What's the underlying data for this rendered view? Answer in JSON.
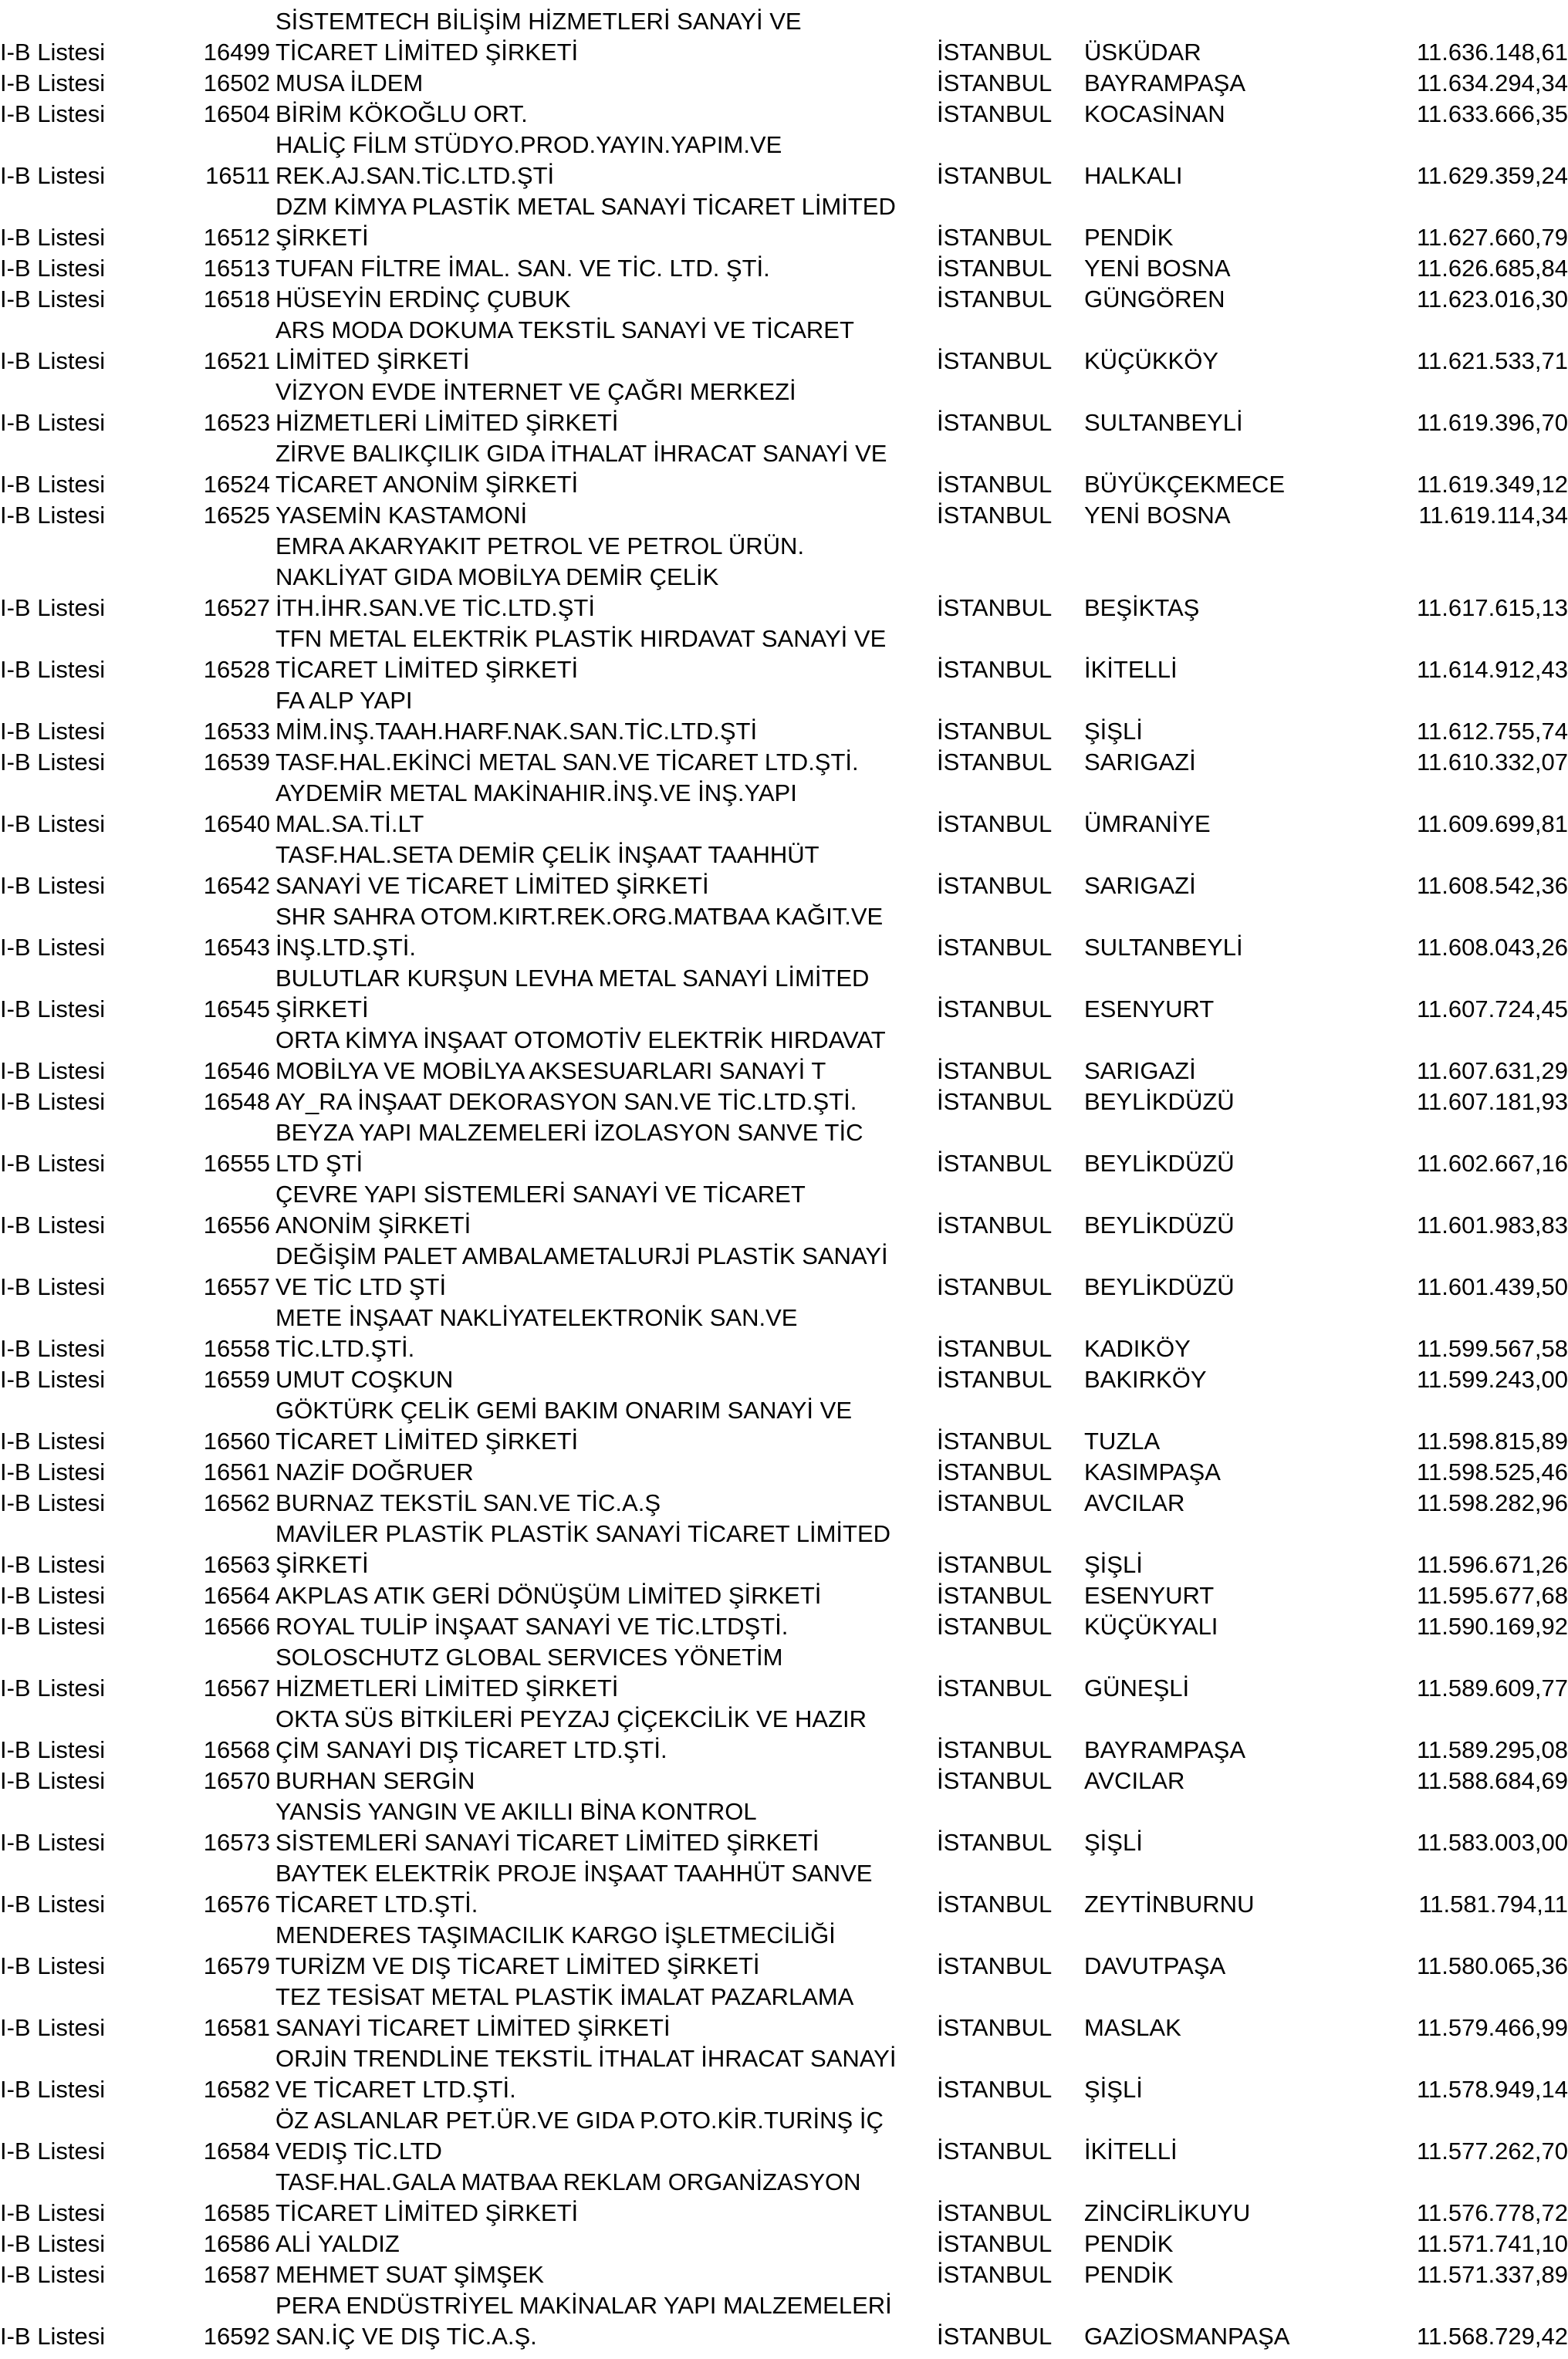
{
  "rows": [
    {
      "list": "I-B Listesi",
      "id": "16499",
      "name": [
        "SİSTEMTECH BİLİŞİM HİZMETLERİ SANAYİ VE",
        "TİCARET LİMİTED ŞİRKETİ"
      ],
      "city": "İSTANBUL",
      "district": "ÜSKÜDAR",
      "amount": "11.636.148,61"
    },
    {
      "list": "I-B Listesi",
      "id": "16502",
      "name": [
        "MUSA İLDEM"
      ],
      "city": "İSTANBUL",
      "district": "BAYRAMPAŞA",
      "amount": "11.634.294,34"
    },
    {
      "list": "I-B Listesi",
      "id": "16504",
      "name": [
        "BİRİM KÖKOĞLU ORT."
      ],
      "city": "İSTANBUL",
      "district": "KOCASİNAN",
      "amount": "11.633.666,35"
    },
    {
      "list": "I-B Listesi",
      "id": "16511",
      "name": [
        "HALİÇ FİLM STÜDYO.PROD.YAYIN.YAPIM.VE",
        "REK.AJ.SAN.TİC.LTD.ŞTİ"
      ],
      "city": "İSTANBUL",
      "district": "HALKALI",
      "amount": "11.629.359,24"
    },
    {
      "list": "I-B Listesi",
      "id": "16512",
      "name": [
        "DZM KİMYA PLASTİK METAL SANAYİ TİCARET LİMİTED",
        "ŞİRKETİ"
      ],
      "city": "İSTANBUL",
      "district": "PENDİK",
      "amount": "11.627.660,79"
    },
    {
      "list": "I-B Listesi",
      "id": "16513",
      "name": [
        "TUFAN FİLTRE İMAL. SAN. VE TİC. LTD. ŞTİ."
      ],
      "city": "İSTANBUL",
      "district": "YENİ BOSNA",
      "amount": "11.626.685,84"
    },
    {
      "list": "I-B Listesi",
      "id": "16518",
      "name": [
        "HÜSEYİN ERDİNÇ ÇUBUK"
      ],
      "city": "İSTANBUL",
      "district": "GÜNGÖREN",
      "amount": "11.623.016,30"
    },
    {
      "list": "I-B Listesi",
      "id": "16521",
      "name": [
        "ARS MODA DOKUMA TEKSTİL SANAYİ VE TİCARET",
        "LİMİTED ŞİRKETİ"
      ],
      "city": "İSTANBUL",
      "district": "KÜÇÜKKÖY",
      "amount": "11.621.533,71"
    },
    {
      "list": "I-B Listesi",
      "id": "16523",
      "name": [
        "VİZYON EVDE İNTERNET VE ÇAĞRI MERKEZİ",
        "HİZMETLERİ LİMİTED ŞİRKETİ"
      ],
      "city": "İSTANBUL",
      "district": "SULTANBEYLİ",
      "amount": "11.619.396,70"
    },
    {
      "list": "I-B Listesi",
      "id": "16524",
      "name": [
        "ZİRVE BALIKÇILIK GIDA İTHALAT İHRACAT SANAYİ VE",
        "TİCARET ANONİM ŞİRKETİ"
      ],
      "city": "İSTANBUL",
      "district": "BÜYÜKÇEKMECE",
      "amount": "11.619.349,12"
    },
    {
      "list": "I-B Listesi",
      "id": "16525",
      "name": [
        "YASEMİN KASTAMONİ"
      ],
      "city": "İSTANBUL",
      "district": "YENİ BOSNA",
      "amount": "11.619.114,34"
    },
    {
      "list": "I-B Listesi",
      "id": "16527",
      "name": [
        "EMRA AKARYAKIT PETROL VE PETROL ÜRÜN.",
        "NAKLİYAT GIDA MOBİLYA DEMİR ÇELİK",
        "İTH.İHR.SAN.VE TİC.LTD.ŞTİ"
      ],
      "city": "İSTANBUL",
      "district": "BEŞİKTAŞ",
      "amount": "11.617.615,13"
    },
    {
      "list": "I-B Listesi",
      "id": "16528",
      "name": [
        "TFN METAL ELEKTRİK PLASTİK HIRDAVAT SANAYİ VE",
        "TİCARET LİMİTED ŞİRKETİ"
      ],
      "city": "İSTANBUL",
      "district": "İKİTELLİ",
      "amount": "11.614.912,43"
    },
    {
      "list": "I-B Listesi",
      "id": "16533",
      "name": [
        "FA ALP YAPI",
        "MİM.İNŞ.TAAH.HARF.NAK.SAN.TİC.LTD.ŞTİ"
      ],
      "city": "İSTANBUL",
      "district": "ŞİŞLİ",
      "amount": "11.612.755,74"
    },
    {
      "list": "I-B Listesi",
      "id": "16539",
      "name": [
        "TASF.HAL.EKİNCİ METAL SAN.VE TİCARET LTD.ŞTİ."
      ],
      "city": "İSTANBUL",
      "district": "SARIGAZİ",
      "amount": "11.610.332,07"
    },
    {
      "list": "I-B Listesi",
      "id": "16540",
      "name": [
        "AYDEMİR METAL MAKİNAHIR.İNŞ.VE İNŞ.YAPI",
        "MAL.SA.Tİ.LT"
      ],
      "city": "İSTANBUL",
      "district": "ÜMRANİYE",
      "amount": "11.609.699,81"
    },
    {
      "list": "I-B Listesi",
      "id": "16542",
      "name": [
        "TASF.HAL.SETA DEMİR ÇELİK İNŞAAT TAAHHÜT",
        "SANAYİ VE TİCARET LİMİTED ŞİRKETİ"
      ],
      "city": "İSTANBUL",
      "district": "SARIGAZİ",
      "amount": "11.608.542,36"
    },
    {
      "list": "I-B Listesi",
      "id": "16543",
      "name": [
        "SHR SAHRA OTOM.KIRT.REK.ORG.MATBAA KAĞIT.VE",
        "İNŞ.LTD.ŞTİ."
      ],
      "city": "İSTANBUL",
      "district": "SULTANBEYLİ",
      "amount": "11.608.043,26"
    },
    {
      "list": "I-B Listesi",
      "id": "16545",
      "name": [
        "BULUTLAR KURŞUN LEVHA METAL SANAYİ LİMİTED",
        "ŞİRKETİ"
      ],
      "city": "İSTANBUL",
      "district": "ESENYURT",
      "amount": "11.607.724,45"
    },
    {
      "list": "I-B Listesi",
      "id": "16546",
      "name": [
        "ORTA KİMYA İNŞAAT OTOMOTİV ELEKTRİK HIRDAVAT",
        "MOBİLYA VE MOBİLYA AKSESUARLARI SANAYİ T"
      ],
      "city": "İSTANBUL",
      "district": "SARIGAZİ",
      "amount": "11.607.631,29"
    },
    {
      "list": "I-B Listesi",
      "id": "16548",
      "name": [
        "AY_RA İNŞAAT DEKORASYON SAN.VE TİC.LTD.ŞTİ."
      ],
      "city": "İSTANBUL",
      "district": "BEYLİKDÜZÜ",
      "amount": "11.607.181,93"
    },
    {
      "list": "I-B Listesi",
      "id": "16555",
      "name": [
        "BEYZA YAPI MALZEMELERİ İZOLASYON SANVE TİC",
        "LTD ŞTİ"
      ],
      "city": "İSTANBUL",
      "district": "BEYLİKDÜZÜ",
      "amount": "11.602.667,16"
    },
    {
      "list": "I-B Listesi",
      "id": "16556",
      "name": [
        "ÇEVRE YAPI SİSTEMLERİ SANAYİ VE TİCARET",
        "ANONİM ŞİRKETİ"
      ],
      "city": "İSTANBUL",
      "district": "BEYLİKDÜZÜ",
      "amount": "11.601.983,83"
    },
    {
      "list": "I-B Listesi",
      "id": "16557",
      "name": [
        "DEĞİŞİM PALET AMBALAMETALURJİ PLASTİK SANAYİ",
        "VE TİC LTD ŞTİ"
      ],
      "city": "İSTANBUL",
      "district": "BEYLİKDÜZÜ",
      "amount": "11.601.439,50"
    },
    {
      "list": "I-B Listesi",
      "id": "16558",
      "name": [
        "METE İNŞAAT NAKLİYATELEKTRONİK SAN.VE",
        "TİC.LTD.ŞTİ."
      ],
      "city": "İSTANBUL",
      "district": "KADIKÖY",
      "amount": "11.599.567,58"
    },
    {
      "list": "I-B Listesi",
      "id": "16559",
      "name": [
        "UMUT COŞKUN"
      ],
      "city": "İSTANBUL",
      "district": "BAKIRKÖY",
      "amount": "11.599.243,00"
    },
    {
      "list": "I-B Listesi",
      "id": "16560",
      "name": [
        "GÖKTÜRK ÇELİK GEMİ BAKIM ONARIM SANAYİ VE",
        "TİCARET LİMİTED ŞİRKETİ"
      ],
      "city": "İSTANBUL",
      "district": "TUZLA",
      "amount": "11.598.815,89"
    },
    {
      "list": "I-B Listesi",
      "id": "16561",
      "name": [
        "NAZİF DOĞRUER"
      ],
      "city": "İSTANBUL",
      "district": "KASIMPAŞA",
      "amount": "11.598.525,46"
    },
    {
      "list": "I-B Listesi",
      "id": "16562",
      "name": [
        "BURNAZ TEKSTİL SAN.VE TİC.A.Ş"
      ],
      "city": "İSTANBUL",
      "district": "AVCILAR",
      "amount": "11.598.282,96"
    },
    {
      "list": "I-B Listesi",
      "id": "16563",
      "name": [
        "MAVİLER PLASTİK PLASTİK SANAYİ TİCARET LİMİTED",
        "ŞİRKETİ"
      ],
      "city": "İSTANBUL",
      "district": "ŞİŞLİ",
      "amount": "11.596.671,26"
    },
    {
      "list": "I-B Listesi",
      "id": "16564",
      "name": [
        "AKPLAS ATIK GERİ DÖNÜŞÜM LİMİTED ŞİRKETİ"
      ],
      "city": "İSTANBUL",
      "district": "ESENYURT",
      "amount": "11.595.677,68"
    },
    {
      "list": "I-B Listesi",
      "id": "16566",
      "name": [
        "ROYAL TULİP İNŞAAT SANAYİ VE TİC.LTDŞTİ."
      ],
      "city": "İSTANBUL",
      "district": "KÜÇÜKYALI",
      "amount": "11.590.169,92"
    },
    {
      "list": "I-B Listesi",
      "id": "16567",
      "name": [
        "SOLOSCHUTZ GLOBAL SERVICES YÖNETİM",
        "HİZMETLERİ LİMİTED ŞİRKETİ"
      ],
      "city": "İSTANBUL",
      "district": "GÜNEŞLİ",
      "amount": "11.589.609,77"
    },
    {
      "list": "I-B Listesi",
      "id": "16568",
      "name": [
        "OKTA SÜS BİTKİLERİ PEYZAJ ÇİÇEKCİLİK VE HAZIR",
        "ÇİM SANAYİ DIŞ TİCARET LTD.ŞTİ."
      ],
      "city": "İSTANBUL",
      "district": "BAYRAMPAŞA",
      "amount": "11.589.295,08"
    },
    {
      "list": "I-B Listesi",
      "id": "16570",
      "name": [
        "BURHAN SERGİN"
      ],
      "city": "İSTANBUL",
      "district": "AVCILAR",
      "amount": "11.588.684,69"
    },
    {
      "list": "I-B Listesi",
      "id": "16573",
      "name": [
        "YANSİS YANGIN VE AKILLI BİNA KONTROL",
        "SİSTEMLERİ SANAYİ TİCARET LİMİTED ŞİRKETİ"
      ],
      "city": "İSTANBUL",
      "district": "ŞİŞLİ",
      "amount": "11.583.003,00"
    },
    {
      "list": "I-B Listesi",
      "id": "16576",
      "name": [
        "BAYTEK ELEKTRİK PROJE İNŞAAT TAAHHÜT SANVE",
        "TİCARET LTD.ŞTİ."
      ],
      "city": "İSTANBUL",
      "district": "ZEYTİNBURNU",
      "amount": "11.581.794,11"
    },
    {
      "list": "I-B Listesi",
      "id": "16579",
      "name": [
        "MENDERES TAŞIMACILIK KARGO İŞLETMECİLİĞİ",
        "TURİZM VE DIŞ TİCARET LİMİTED ŞİRKETİ"
      ],
      "city": "İSTANBUL",
      "district": "DAVUTPAŞA",
      "amount": "11.580.065,36"
    },
    {
      "list": "I-B Listesi",
      "id": "16581",
      "name": [
        "TEZ TESİSAT METAL PLASTİK İMALAT PAZARLAMA",
        "SANAYİ TİCARET LİMİTED ŞİRKETİ"
      ],
      "city": "İSTANBUL",
      "district": "MASLAK",
      "amount": "11.579.466,99"
    },
    {
      "list": "I-B Listesi",
      "id": "16582",
      "name": [
        "ORJİN TRENDLİNE TEKSTİL İTHALAT İHRACAT SANAYİ",
        "VE TİCARET LTD.ŞTİ."
      ],
      "city": "İSTANBUL",
      "district": "ŞİŞLİ",
      "amount": "11.578.949,14"
    },
    {
      "list": "I-B Listesi",
      "id": "16584",
      "name": [
        "ÖZ ASLANLAR PET.ÜR.VE GIDA P.OTO.KİR.TURİNŞ İÇ",
        "VEDIŞ TİC.LTD"
      ],
      "city": "İSTANBUL",
      "district": "İKİTELLİ",
      "amount": "11.577.262,70"
    },
    {
      "list": "I-B Listesi",
      "id": "16585",
      "name": [
        "TASF.HAL.GALA MATBAA REKLAM ORGANİZASYON",
        "TİCARET LİMİTED ŞİRKETİ"
      ],
      "city": "İSTANBUL",
      "district": "ZİNCİRLİKUYU",
      "amount": "11.576.778,72"
    },
    {
      "list": "I-B Listesi",
      "id": "16586",
      "name": [
        "ALİ YALDIZ"
      ],
      "city": "İSTANBUL",
      "district": "PENDİK",
      "amount": "11.571.741,10"
    },
    {
      "list": "I-B Listesi",
      "id": "16587",
      "name": [
        "MEHMET SUAT ŞİMŞEK"
      ],
      "city": "İSTANBUL",
      "district": "PENDİK",
      "amount": "11.571.337,89"
    },
    {
      "list": "I-B Listesi",
      "id": "16592",
      "name": [
        "PERA ENDÜSTRİYEL MAKİNALAR YAPI MALZEMELERİ",
        "SAN.İÇ VE DIŞ TİC.A.Ş."
      ],
      "city": "İSTANBUL",
      "district": "GAZİOSMANPAŞA",
      "amount": "11.568.729,42"
    }
  ]
}
